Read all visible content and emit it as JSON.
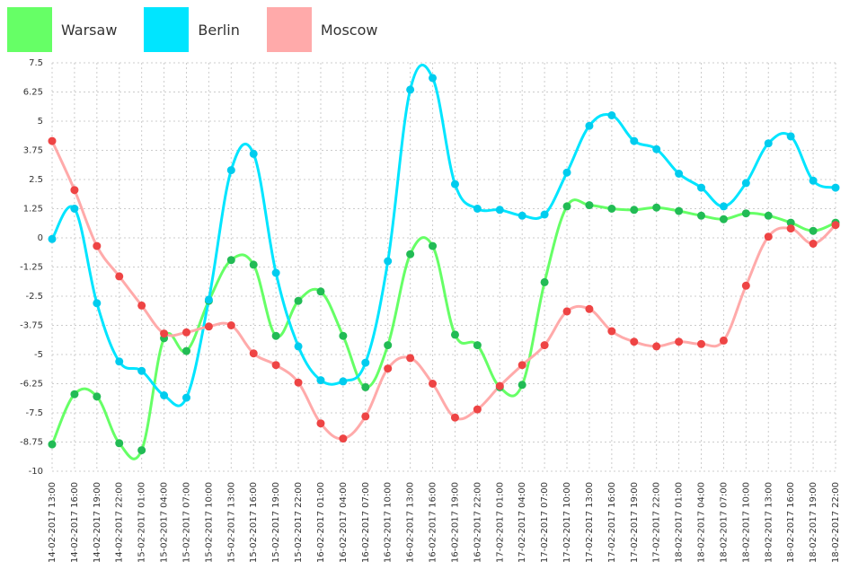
{
  "chart_data": {
    "type": "line",
    "title": "",
    "xlabel": "",
    "ylabel": "",
    "ylim": [
      -10,
      7.5
    ],
    "yticks": [
      "7.5",
      "6.25",
      "5",
      "3.75",
      "2.5",
      "1.25",
      "0",
      "-1.25",
      "-2.5",
      "-3.75",
      "-5",
      "-6.25",
      "-7.5",
      "-8.75",
      "-10"
    ],
    "grid": true,
    "legend_position": "top-left",
    "categories": [
      "14-02-2017 13:00",
      "14-02-2017 16:00",
      "14-02-2017 19:00",
      "14-02-2017 22:00",
      "15-02-2017 01:00",
      "15-02-2017 04:00",
      "15-02-2017 07:00",
      "15-02-2017 10:00",
      "15-02-2017 13:00",
      "15-02-2017 16:00",
      "15-02-2017 19:00",
      "15-02-2017 22:00",
      "16-02-2017 01:00",
      "16-02-2017 04:00",
      "16-02-2017 07:00",
      "16-02-2017 10:00",
      "16-02-2017 13:00",
      "16-02-2017 16:00",
      "16-02-2017 19:00",
      "16-02-2017 22:00",
      "17-02-2017 01:00",
      "17-02-2017 04:00",
      "17-02-2017 07:00",
      "17-02-2017 10:00",
      "17-02-2017 13:00",
      "17-02-2017 16:00",
      "17-02-2017 19:00",
      "17-02-2017 22:00",
      "18-02-2017 01:00",
      "18-02-2017 04:00",
      "18-02-2017 07:00",
      "18-02-2017 10:00",
      "18-02-2017 13:00",
      "18-02-2017 16:00",
      "18-02-2017 19:00",
      "18-02-2017 22:00"
    ],
    "series": [
      {
        "name": "Warsaw",
        "line_color": "#66ff66",
        "point_color": "#22bb55",
        "swatch_color": "#66ff66",
        "values": [
          -8.85,
          -6.7,
          -6.8,
          -8.8,
          -9.1,
          -4.3,
          -4.85,
          -2.7,
          -0.95,
          -1.15,
          -4.2,
          -2.7,
          -2.3,
          -4.2,
          -6.4,
          -4.6,
          -0.7,
          -0.35,
          -4.15,
          -4.6,
          -6.4,
          -6.3,
          -1.9,
          1.35,
          1.4,
          1.25,
          1.2,
          1.3,
          1.15,
          0.95,
          0.8,
          1.05,
          0.95,
          0.65,
          0.3,
          0.65
        ]
      },
      {
        "name": "Berlin",
        "line_color": "#00e5ff",
        "point_color": "#00ccee",
        "swatch_color": "#00e5ff",
        "values": [
          -0.05,
          1.25,
          -2.8,
          -5.3,
          -5.7,
          -6.75,
          -6.85,
          -2.65,
          2.9,
          3.6,
          -1.5,
          -4.65,
          -6.1,
          -6.15,
          -5.35,
          -1.0,
          6.35,
          6.85,
          2.3,
          1.25,
          1.2,
          0.95,
          1.0,
          2.8,
          4.8,
          5.25,
          4.15,
          3.8,
          2.75,
          2.15,
          1.35,
          2.35,
          4.05,
          4.35,
          2.45,
          2.15
        ]
      },
      {
        "name": "Moscow",
        "line_color": "#ffaaaa",
        "point_color": "#ee4444",
        "swatch_color": "#ffaaaa",
        "values": [
          4.15,
          2.05,
          -0.35,
          -1.65,
          -2.9,
          -4.1,
          -4.05,
          -3.8,
          -3.75,
          -4.95,
          -5.45,
          -6.2,
          -7.95,
          -8.6,
          -7.65,
          -5.6,
          -5.15,
          -6.25,
          -7.7,
          -7.35,
          -6.35,
          -5.45,
          -4.6,
          -3.15,
          -3.05,
          -4.0,
          -4.45,
          -4.65,
          -4.45,
          -4.55,
          -4.4,
          -2.05,
          0.05,
          0.4,
          -0.25,
          0.55
        ]
      }
    ]
  }
}
